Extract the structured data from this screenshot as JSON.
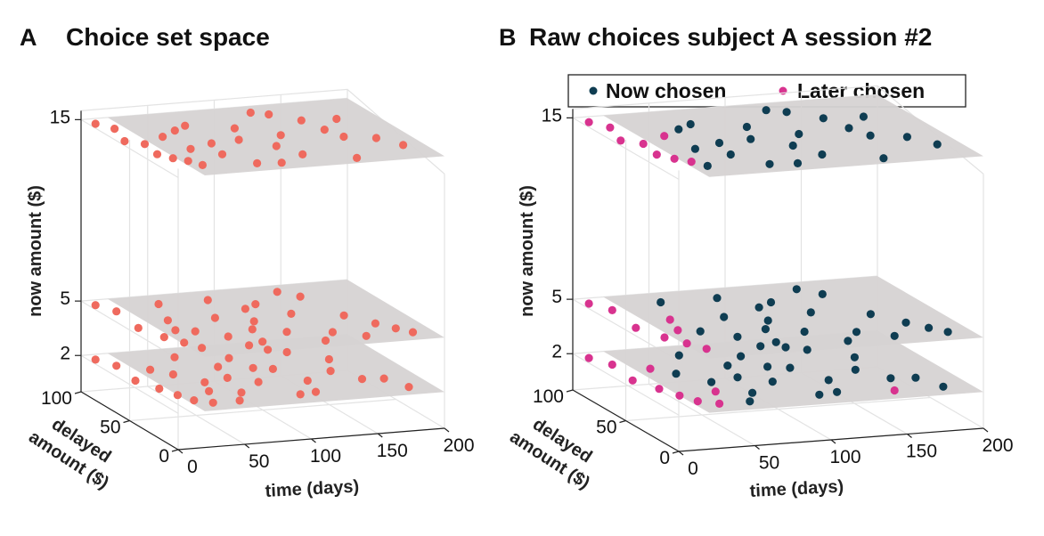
{
  "colors": {
    "choice_set": "#ef6a5e",
    "now_chosen": "#0f3d52",
    "later_chosen": "#d8338f",
    "plane": "#d6d3d3",
    "grid": "#e3e3e3"
  },
  "chart_data": [
    {
      "type": "scatter",
      "letter": "A",
      "title": "Choice set space",
      "axes": {
        "x": {
          "label": "time (days)",
          "range": [
            0,
            200
          ],
          "ticks": [
            "0",
            "50",
            "100",
            "150",
            "200"
          ]
        },
        "y": {
          "label": "delayed\namount ($)",
          "range": [
            0,
            100
          ],
          "ticks": [
            "0",
            "50",
            "100"
          ]
        },
        "z": {
          "label": "now amount ($)",
          "range": [
            0,
            15
          ],
          "ticks": [
            "2",
            "5",
            "15"
          ]
        }
      },
      "grid": true,
      "planes_z": [
        2,
        5,
        15
      ],
      "series": [
        {
          "color": "#ef6a5e",
          "points": [
            [
              5,
              92,
              15
            ],
            [
              12,
              82,
              15
            ],
            [
              5,
              62,
              15
            ],
            [
              15,
              55,
              15
            ],
            [
              12,
              38,
              15
            ],
            [
              18,
              30,
              15
            ],
            [
              25,
              24,
              15
            ],
            [
              30,
              16,
              15
            ],
            [
              40,
              42,
              15
            ],
            [
              55,
              30,
              15
            ],
            [
              68,
              12,
              15
            ],
            [
              50,
              72,
              15
            ],
            [
              62,
              78,
              15
            ],
            [
              82,
              50,
              15
            ],
            [
              92,
              68,
              15
            ],
            [
              100,
              36,
              15
            ],
            [
              108,
              20,
              15
            ],
            [
              115,
              52,
              15
            ],
            [
              130,
              85,
              15
            ],
            [
              145,
              72,
              15
            ],
            [
              150,
              55,
              15
            ],
            [
              155,
              42,
              15
            ],
            [
              175,
              36,
              15
            ],
            [
              185,
              22,
              15
            ],
            [
              120,
              90,
              15
            ],
            [
              85,
              10,
              15
            ],
            [
              140,
              8,
              15
            ],
            [
              35,
              64,
              15
            ],
            [
              60,
              48,
              15
            ],
            [
              170,
              70,
              15
            ],
            [
              5,
              92,
              5
            ],
            [
              12,
              80,
              5
            ],
            [
              8,
              52,
              5
            ],
            [
              15,
              35,
              5
            ],
            [
              22,
              24,
              5
            ],
            [
              28,
              14,
              5
            ],
            [
              42,
              40,
              5
            ],
            [
              48,
              86,
              5
            ],
            [
              58,
              28,
              5
            ],
            [
              70,
              58,
              5
            ],
            [
              75,
              16,
              5
            ],
            [
              85,
              86,
              5
            ],
            [
              92,
              48,
              5
            ],
            [
              102,
              28,
              5
            ],
            [
              112,
              74,
              5
            ],
            [
              125,
              55,
              5
            ],
            [
              132,
              22,
              5
            ],
            [
              150,
              80,
              5
            ],
            [
              158,
              46,
              5
            ],
            [
              170,
              30,
              5
            ],
            [
              185,
              12,
              5
            ],
            [
              178,
              20,
              5
            ],
            [
              140,
              90,
              5
            ],
            [
              62,
              12,
              5
            ],
            [
              118,
              10,
              5
            ],
            [
              36,
              60,
              5
            ],
            [
              82,
              36,
              5
            ],
            [
              100,
              68,
              5
            ],
            [
              150,
              12,
              5
            ],
            [
              30,
              44,
              5
            ],
            [
              5,
              92,
              2
            ],
            [
              12,
              80,
              2
            ],
            [
              8,
              55,
              2
            ],
            [
              15,
              40,
              2
            ],
            [
              20,
              28,
              2
            ],
            [
              25,
              18,
              2
            ],
            [
              35,
              12,
              2
            ],
            [
              40,
              60,
              2
            ],
            [
              52,
              44,
              2
            ],
            [
              60,
              86,
              2
            ],
            [
              65,
              24,
              2
            ],
            [
              78,
              66,
              2
            ],
            [
              88,
              38,
              2
            ],
            [
              95,
              78,
              2
            ],
            [
              102,
              14,
              2
            ],
            [
              112,
              56,
              2
            ],
            [
              122,
              34,
              2
            ],
            [
              140,
              80,
              2
            ],
            [
              148,
              46,
              2
            ],
            [
              160,
              64,
              2
            ],
            [
              175,
              28,
              2
            ],
            [
              182,
              12,
              2
            ],
            [
              130,
              86,
              2
            ],
            [
              55,
              12,
              2
            ],
            [
              115,
              16,
              2
            ],
            [
              30,
              70,
              2
            ],
            [
              72,
              48,
              2
            ],
            [
              100,
              60,
              2
            ],
            [
              160,
              30,
              2
            ],
            [
              45,
              30,
              2
            ]
          ]
        }
      ]
    },
    {
      "type": "scatter",
      "letter": "B",
      "title": "Raw choices subject A session #2",
      "legend": {
        "placement": "top",
        "entries": [
          {
            "name": "Now chosen",
            "color": "#0f3d52"
          },
          {
            "name": "Later chosen",
            "color": "#d8338f"
          }
        ]
      },
      "axes": {
        "x": {
          "label": "time (days)",
          "range": [
            0,
            200
          ],
          "ticks": [
            "0",
            "50",
            "100",
            "150",
            "200"
          ]
        },
        "y": {
          "label": "delayed\namount ($)",
          "range": [
            0,
            100
          ],
          "ticks": [
            "0",
            "50",
            "100"
          ]
        },
        "z": {
          "label": "now amount ($)",
          "range": [
            0,
            15
          ],
          "ticks": [
            "2",
            "5",
            "15"
          ]
        }
      },
      "grid": true,
      "planes_z": [
        2,
        5,
        15
      ],
      "series": [
        {
          "name": "Later chosen",
          "color": "#d8338f",
          "points": [
            [
              5,
              92,
              15
            ],
            [
              12,
              82,
              15
            ],
            [
              5,
              62,
              15
            ],
            [
              15,
              55,
              15
            ],
            [
              12,
              38,
              15
            ],
            [
              18,
              30,
              15
            ],
            [
              25,
              24,
              15
            ],
            [
              35,
              64,
              15
            ],
            [
              5,
              92,
              5
            ],
            [
              12,
              80,
              5
            ],
            [
              8,
              52,
              5
            ],
            [
              15,
              35,
              5
            ],
            [
              22,
              24,
              5
            ],
            [
              28,
              14,
              5
            ],
            [
              36,
              60,
              5
            ],
            [
              30,
              44,
              5
            ],
            [
              5,
              92,
              2
            ],
            [
              12,
              80,
              2
            ],
            [
              8,
              55,
              2
            ],
            [
              15,
              40,
              2
            ],
            [
              20,
              28,
              2
            ],
            [
              25,
              18,
              2
            ],
            [
              35,
              12,
              2
            ],
            [
              30,
              70,
              2
            ],
            [
              45,
              30,
              2
            ],
            [
              150,
              12,
              2
            ]
          ]
        },
        {
          "name": "Now chosen",
          "color": "#0f3d52",
          "points": [
            [
              30,
              16,
              15
            ],
            [
              40,
              42,
              15
            ],
            [
              55,
              30,
              15
            ],
            [
              68,
              12,
              15
            ],
            [
              50,
              72,
              15
            ],
            [
              62,
              78,
              15
            ],
            [
              82,
              50,
              15
            ],
            [
              92,
              68,
              15
            ],
            [
              100,
              36,
              15
            ],
            [
              108,
              20,
              15
            ],
            [
              115,
              52,
              15
            ],
            [
              130,
              85,
              15
            ],
            [
              145,
              72,
              15
            ],
            [
              150,
              55,
              15
            ],
            [
              155,
              42,
              15
            ],
            [
              175,
              36,
              15
            ],
            [
              185,
              22,
              15
            ],
            [
              120,
              90,
              15
            ],
            [
              85,
              10,
              15
            ],
            [
              140,
              8,
              15
            ],
            [
              60,
              48,
              15
            ],
            [
              170,
              70,
              15
            ],
            [
              42,
              40,
              5
            ],
            [
              48,
              86,
              5
            ],
            [
              58,
              28,
              5
            ],
            [
              70,
              58,
              5
            ],
            [
              75,
              16,
              5
            ],
            [
              85,
              86,
              5
            ],
            [
              92,
              48,
              5
            ],
            [
              102,
              28,
              5
            ],
            [
              112,
              74,
              5
            ],
            [
              125,
              55,
              5
            ],
            [
              132,
              22,
              5
            ],
            [
              150,
              80,
              5
            ],
            [
              158,
              46,
              5
            ],
            [
              170,
              30,
              5
            ],
            [
              185,
              12,
              5
            ],
            [
              178,
              20,
              5
            ],
            [
              140,
              90,
              5
            ],
            [
              62,
              12,
              5
            ],
            [
              118,
              10,
              5
            ],
            [
              82,
              36,
              5
            ],
            [
              100,
              68,
              5
            ],
            [
              150,
              12,
              5
            ],
            [
              40,
              60,
              2
            ],
            [
              52,
              44,
              2
            ],
            [
              60,
              86,
              2
            ],
            [
              65,
              24,
              2
            ],
            [
              78,
              66,
              2
            ],
            [
              88,
              38,
              2
            ],
            [
              95,
              78,
              2
            ],
            [
              102,
              14,
              2
            ],
            [
              112,
              56,
              2
            ],
            [
              122,
              34,
              2
            ],
            [
              140,
              80,
              2
            ],
            [
              148,
              46,
              2
            ],
            [
              160,
              64,
              2
            ],
            [
              175,
              28,
              2
            ],
            [
              182,
              12,
              2
            ],
            [
              130,
              86,
              2
            ],
            [
              55,
              12,
              2
            ],
            [
              115,
              16,
              2
            ],
            [
              72,
              48,
              2
            ],
            [
              100,
              60,
              2
            ],
            [
              160,
              30,
              2
            ]
          ]
        }
      ]
    }
  ]
}
